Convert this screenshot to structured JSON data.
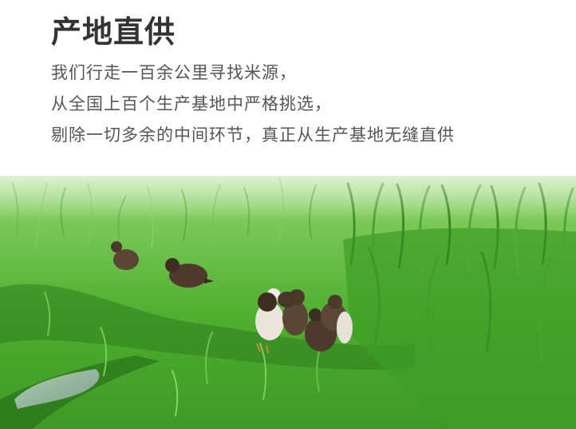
{
  "title": "产地直供",
  "paragraph": {
    "lines": [
      "我们行走一百余公里寻找米源，",
      "从全国上百个生产基地中严格挑选，",
      "剔除一切多余的中间环节，真正从生产基地无缝直供"
    ]
  },
  "photo": {
    "subject_icon": "ducklings-in-rice-field-icon",
    "colors": {
      "grass_light": "#8ed466",
      "grass_mid": "#4fae2f",
      "grass_dark": "#2d7a1d",
      "sky": "#ffffff"
    }
  }
}
